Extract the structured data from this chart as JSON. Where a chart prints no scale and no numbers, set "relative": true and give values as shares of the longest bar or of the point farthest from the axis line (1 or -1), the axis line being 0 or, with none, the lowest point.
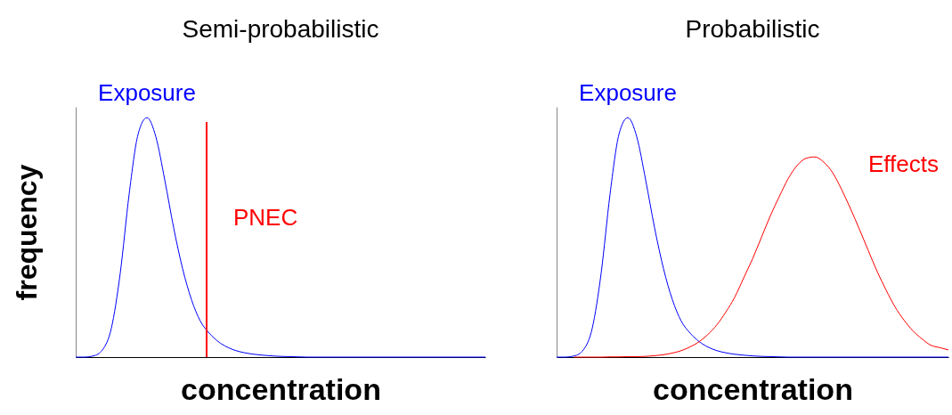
{
  "chart_data": [
    {
      "type": "line",
      "title": "Semi-probabilistic",
      "xlabel": "concentration",
      "ylabel": "frequency",
      "relative": true,
      "tick_labels": false,
      "line_style": "solid",
      "categories": [
        null,
        null,
        null,
        null,
        null,
        null,
        null,
        null,
        null,
        null,
        null,
        null,
        null,
        null,
        null,
        null,
        null,
        null,
        null,
        null,
        null,
        null,
        null,
        null,
        null,
        null,
        null,
        null,
        null,
        null,
        null,
        null,
        null,
        null,
        null,
        null,
        null,
        null,
        null,
        null,
        null,
        null,
        null,
        null,
        null,
        null,
        null
      ],
      "series": [
        {
          "name": "Exposure",
          "color": "#0000ff",
          "values": [
            0,
            0,
            0.005,
            0.03,
            0.12,
            0.35,
            0.68,
            0.93,
            1,
            0.92,
            0.74,
            0.54,
            0.37,
            0.24,
            0.15,
            0.1,
            0.065,
            0.042,
            0.027,
            0.018,
            0.012,
            0.008,
            0.005,
            0.003,
            0.002,
            0.001,
            0,
            0,
            0,
            0,
            0,
            0,
            0,
            0,
            0,
            0,
            0,
            0,
            0,
            0,
            0,
            0,
            0,
            0,
            0,
            0,
            0
          ]
        }
      ],
      "annotations": [
        "PNEC"
      ]
    },
    {
      "type": "line",
      "title": "Probabilistic",
      "xlabel": "concentration",
      "relative": true,
      "tick_labels": false,
      "line_style": "solid",
      "categories": [
        null,
        null,
        null,
        null,
        null,
        null,
        null,
        null,
        null,
        null,
        null,
        null,
        null,
        null,
        null,
        null,
        null,
        null,
        null,
        null,
        null,
        null,
        null,
        null,
        null,
        null,
        null,
        null,
        null,
        null,
        null,
        null,
        null,
        null,
        null,
        null,
        null,
        null,
        null,
        null,
        null,
        null,
        null,
        null,
        null
      ],
      "series": [
        {
          "name": "Exposure",
          "color": "#0000ff",
          "values": [
            0,
            0,
            0.005,
            0.03,
            0.12,
            0.35,
            0.68,
            0.93,
            1,
            0.92,
            0.74,
            0.54,
            0.37,
            0.24,
            0.15,
            0.1,
            0.065,
            0.042,
            0.027,
            0.018,
            0.012,
            0.008,
            0.005,
            0.003,
            0.002,
            0.001,
            0,
            0,
            0,
            0,
            0,
            0,
            0,
            0,
            0,
            0,
            0,
            0,
            0,
            0,
            0,
            0,
            0,
            0,
            0
          ]
        },
        {
          "name": "Effects",
          "color": "#ff0000",
          "values": [
            null,
            null,
            0,
            0,
            0,
            0,
            0.001,
            0.001,
            0.002,
            0.002,
            0.003,
            0.006,
            0.01,
            0.017,
            0.027,
            0.043,
            0.064,
            0.095,
            0.135,
            0.188,
            0.25,
            0.33,
            0.41,
            0.5,
            0.59,
            0.67,
            0.745,
            0.8,
            0.83,
            0.836,
            0.814,
            0.77,
            0.7,
            0.62,
            0.534,
            0.445,
            0.357,
            0.28,
            0.21,
            0.155,
            0.11,
            0.077,
            0.05,
            0.04,
            0.03
          ]
        }
      ]
    }
  ]
}
